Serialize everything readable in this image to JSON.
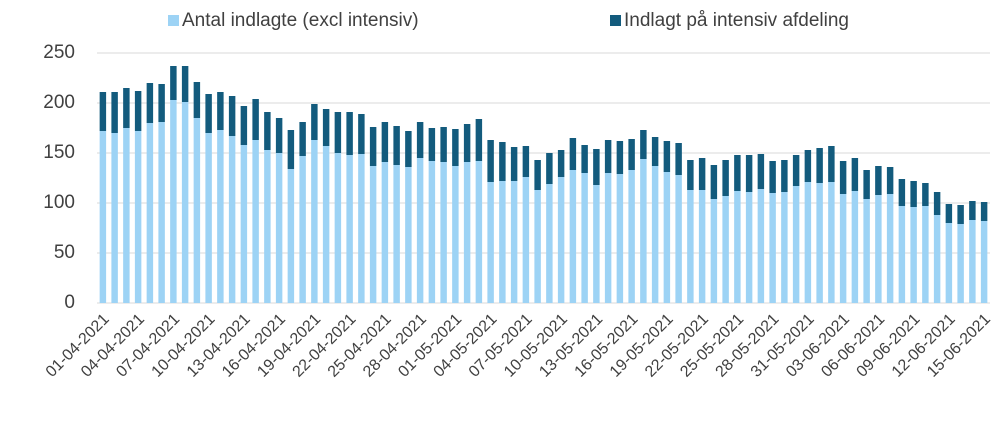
{
  "chart_data": {
    "type": "bar",
    "stacked": true,
    "categories": [
      "01-04-2021",
      null,
      null,
      "04-04-2021",
      null,
      null,
      "07-04-2021",
      null,
      null,
      "10-04-2021",
      null,
      null,
      "13-04-2021",
      null,
      null,
      "16-04-2021",
      null,
      null,
      "19-04-2021",
      null,
      null,
      "22-04-2021",
      null,
      null,
      "25-04-2021",
      null,
      null,
      "28-04-2021",
      null,
      null,
      "01-05-2021",
      null,
      null,
      "04-05-2021",
      null,
      null,
      "07-05-2021",
      null,
      null,
      "10-05-2021",
      null,
      null,
      "13-05-2021",
      null,
      null,
      "16-05-2021",
      null,
      null,
      "19-05-2021",
      null,
      null,
      "22-05-2021",
      null,
      null,
      "25-05-2021",
      null,
      null,
      "28-05-2021",
      null,
      null,
      "31-05-2021",
      null,
      null,
      "03-06-2021",
      null,
      null,
      "06-06-2021",
      null,
      null,
      "09-06-2021",
      null,
      null,
      "12-06-2021",
      null,
      null,
      "15-06-2021"
    ],
    "series": [
      {
        "name": "Antal indlagte (excl intensiv)",
        "color": "#9dd3f5",
        "values": [
          172,
          170,
          175,
          172,
          180,
          181,
          203,
          201,
          185,
          170,
          173,
          167,
          158,
          163,
          153,
          150,
          134,
          147,
          163,
          157,
          150,
          148,
          149,
          137,
          141,
          138,
          136,
          145,
          142,
          141,
          137,
          141,
          142,
          121,
          122,
          122,
          126,
          113,
          119,
          126,
          133,
          130,
          118,
          130,
          129,
          133,
          144,
          137,
          131,
          128,
          113,
          113,
          104,
          107,
          112,
          111,
          114,
          110,
          111,
          117,
          121,
          120,
          121,
          109,
          112,
          104,
          108,
          109,
          97,
          96,
          97,
          88,
          80,
          79,
          83,
          82
        ]
      },
      {
        "name": "Indlagt på intensiv afdeling",
        "color": "#135b7d",
        "values": [
          39,
          41,
          40,
          40,
          40,
          38,
          34,
          36,
          36,
          39,
          38,
          40,
          39,
          41,
          38,
          35,
          39,
          34,
          36,
          37,
          41,
          43,
          40,
          39,
          40,
          39,
          36,
          36,
          33,
          35,
          37,
          38,
          42,
          42,
          39,
          34,
          31,
          30,
          31,
          27,
          32,
          28,
          36,
          33,
          33,
          31,
          29,
          29,
          31,
          32,
          30,
          32,
          34,
          36,
          36,
          37,
          35,
          32,
          32,
          31,
          32,
          35,
          36,
          33,
          33,
          29,
          29,
          27,
          27,
          26,
          23,
          23,
          19,
          19,
          19,
          19
        ]
      }
    ],
    "ylim": [
      0,
      250
    ],
    "yticks": [
      0,
      50,
      100,
      150,
      200,
      250
    ],
    "grid": true,
    "legend": "top"
  }
}
